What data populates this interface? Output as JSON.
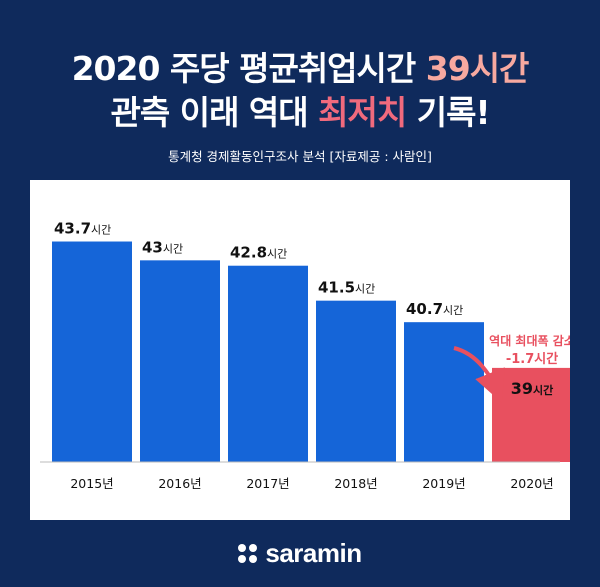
{
  "header": {
    "line1_a": "2020 주당 평균취업시간 ",
    "line1_b": "39시간",
    "line2_a": "관측 이래 역대 ",
    "line2_b": "최저치",
    "line2_c": " 기록!",
    "source": "통계청 경제활동인구조사 분석 [자료제공 : 사람인]"
  },
  "colors": {
    "background": "#0f2a5c",
    "bar_blue": "#1565d8",
    "bar_highlight": "#e8505f",
    "accent_pink": "#e8505f",
    "salmon": "#f7a9a0"
  },
  "chart_data": {
    "type": "bar",
    "categories": [
      "2015년",
      "2016년",
      "2017년",
      "2018년",
      "2019년",
      "2020년"
    ],
    "values": [
      43.7,
      43,
      42.8,
      41.5,
      40.7,
      39
    ],
    "value_labels": [
      "43.7",
      "43",
      "42.8",
      "41.5",
      "40.7",
      "39"
    ],
    "value_unit": "시간",
    "highlight_index": 5,
    "ylim": [
      35.5,
      44.5
    ],
    "annotation": {
      "line1": "역대 최대폭 감소",
      "line2": "-1.7시간"
    }
  },
  "brand": {
    "icon": "saramin-dots-icon",
    "name": "saramin"
  }
}
